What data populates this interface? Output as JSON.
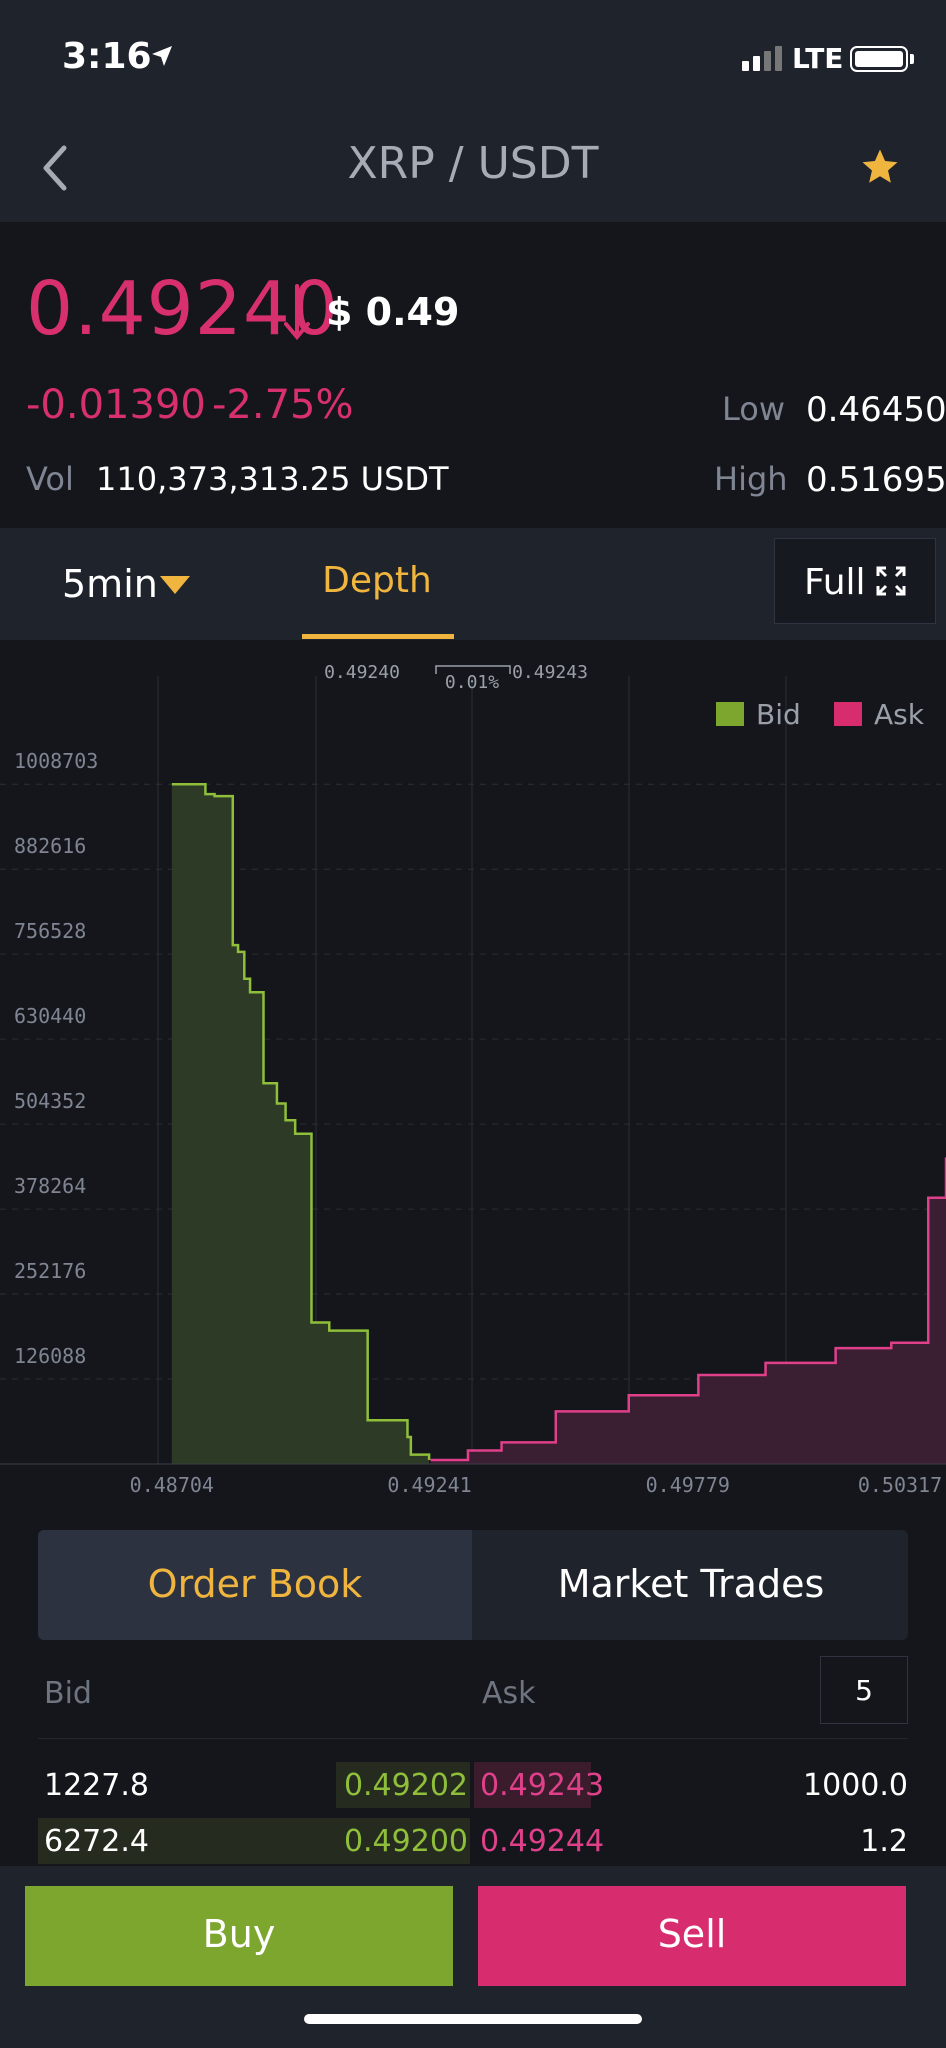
{
  "status_bar": {
    "time": "3:16",
    "network": "LTE"
  },
  "nav": {
    "title": "XRP / USDT"
  },
  "ticker": {
    "price": "0.49240",
    "usd": "$ 0.49",
    "change": "-0.01390",
    "change_pct": "-2.75%",
    "low_label": "Low",
    "low": "0.46450",
    "high_label": "High",
    "high": "0.51695",
    "vol_label": "Vol",
    "vol": "110,373,313.25 USDT"
  },
  "controls": {
    "interval": "5min",
    "depth_tab": "Depth",
    "full_label": "Full"
  },
  "chart_data": {
    "type": "area",
    "legend": [
      {
        "name": "Bid",
        "color": "#7da62e"
      },
      {
        "name": "Ask",
        "color": "#d72d6e"
      }
    ],
    "x_ticks": [
      "0.48704",
      "0.49241",
      "0.49779",
      "0.50317"
    ],
    "y_ticks": [
      "1008703",
      "882616",
      "756528",
      "630440",
      "504352",
      "378264",
      "252176",
      "126088"
    ],
    "spread": {
      "bid_price": "0.49240",
      "ask_price": "0.49243",
      "spread_pct": "0.01%"
    },
    "legend_position": "top-right",
    "grid": true,
    "x_range": [
      0.48346,
      0.50317
    ],
    "y_range": [
      0,
      1104000
    ],
    "bid_series": {
      "name": "Bid",
      "x": [
        0.48704,
        0.48774,
        0.48793,
        0.48831,
        0.48842,
        0.48855,
        0.48867,
        0.48895,
        0.48923,
        0.48941,
        0.48961,
        0.48995,
        0.49032,
        0.49112,
        0.49195,
        0.49202,
        0.4924
      ],
      "values": [
        1008703,
        994000,
        991000,
        770000,
        760000,
        720000,
        700000,
        565000,
        535000,
        510000,
        490000,
        210000,
        198000,
        65000,
        40000,
        14000,
        6000
      ]
    },
    "ask_series": {
      "name": "Ask",
      "x": [
        0.49243,
        0.49321,
        0.49391,
        0.49504,
        0.49656,
        0.49801,
        0.49941,
        0.50087,
        0.50203,
        0.5028,
        0.50317
      ],
      "values": [
        6000,
        20000,
        32000,
        78000,
        102000,
        132000,
        150000,
        172000,
        180000,
        395000,
        455000
      ]
    }
  },
  "order_book": {
    "tab_order_book": "Order Book",
    "tab_market_trades": "Market Trades",
    "bid_header": "Bid",
    "ask_header": "Ask",
    "depth_value": "5",
    "rows": [
      {
        "bid_qty": "1227.8",
        "bid_price": "0.49202",
        "ask_price": "0.49243",
        "ask_qty": "1000.0",
        "bid_depth": 0.31,
        "ask_depth": 0.27
      },
      {
        "bid_qty": "6272.4",
        "bid_price": "0.49200",
        "ask_price": "0.49244",
        "ask_qty": "1.2",
        "bid_depth": 1.0,
        "ask_depth": 0.0
      }
    ]
  },
  "actions": {
    "buy": "Buy",
    "sell": "Sell"
  },
  "colors": {
    "bid": "#7da62e",
    "ask": "#d72d6e",
    "accent": "#f0b53f",
    "down": "#d8306f"
  }
}
